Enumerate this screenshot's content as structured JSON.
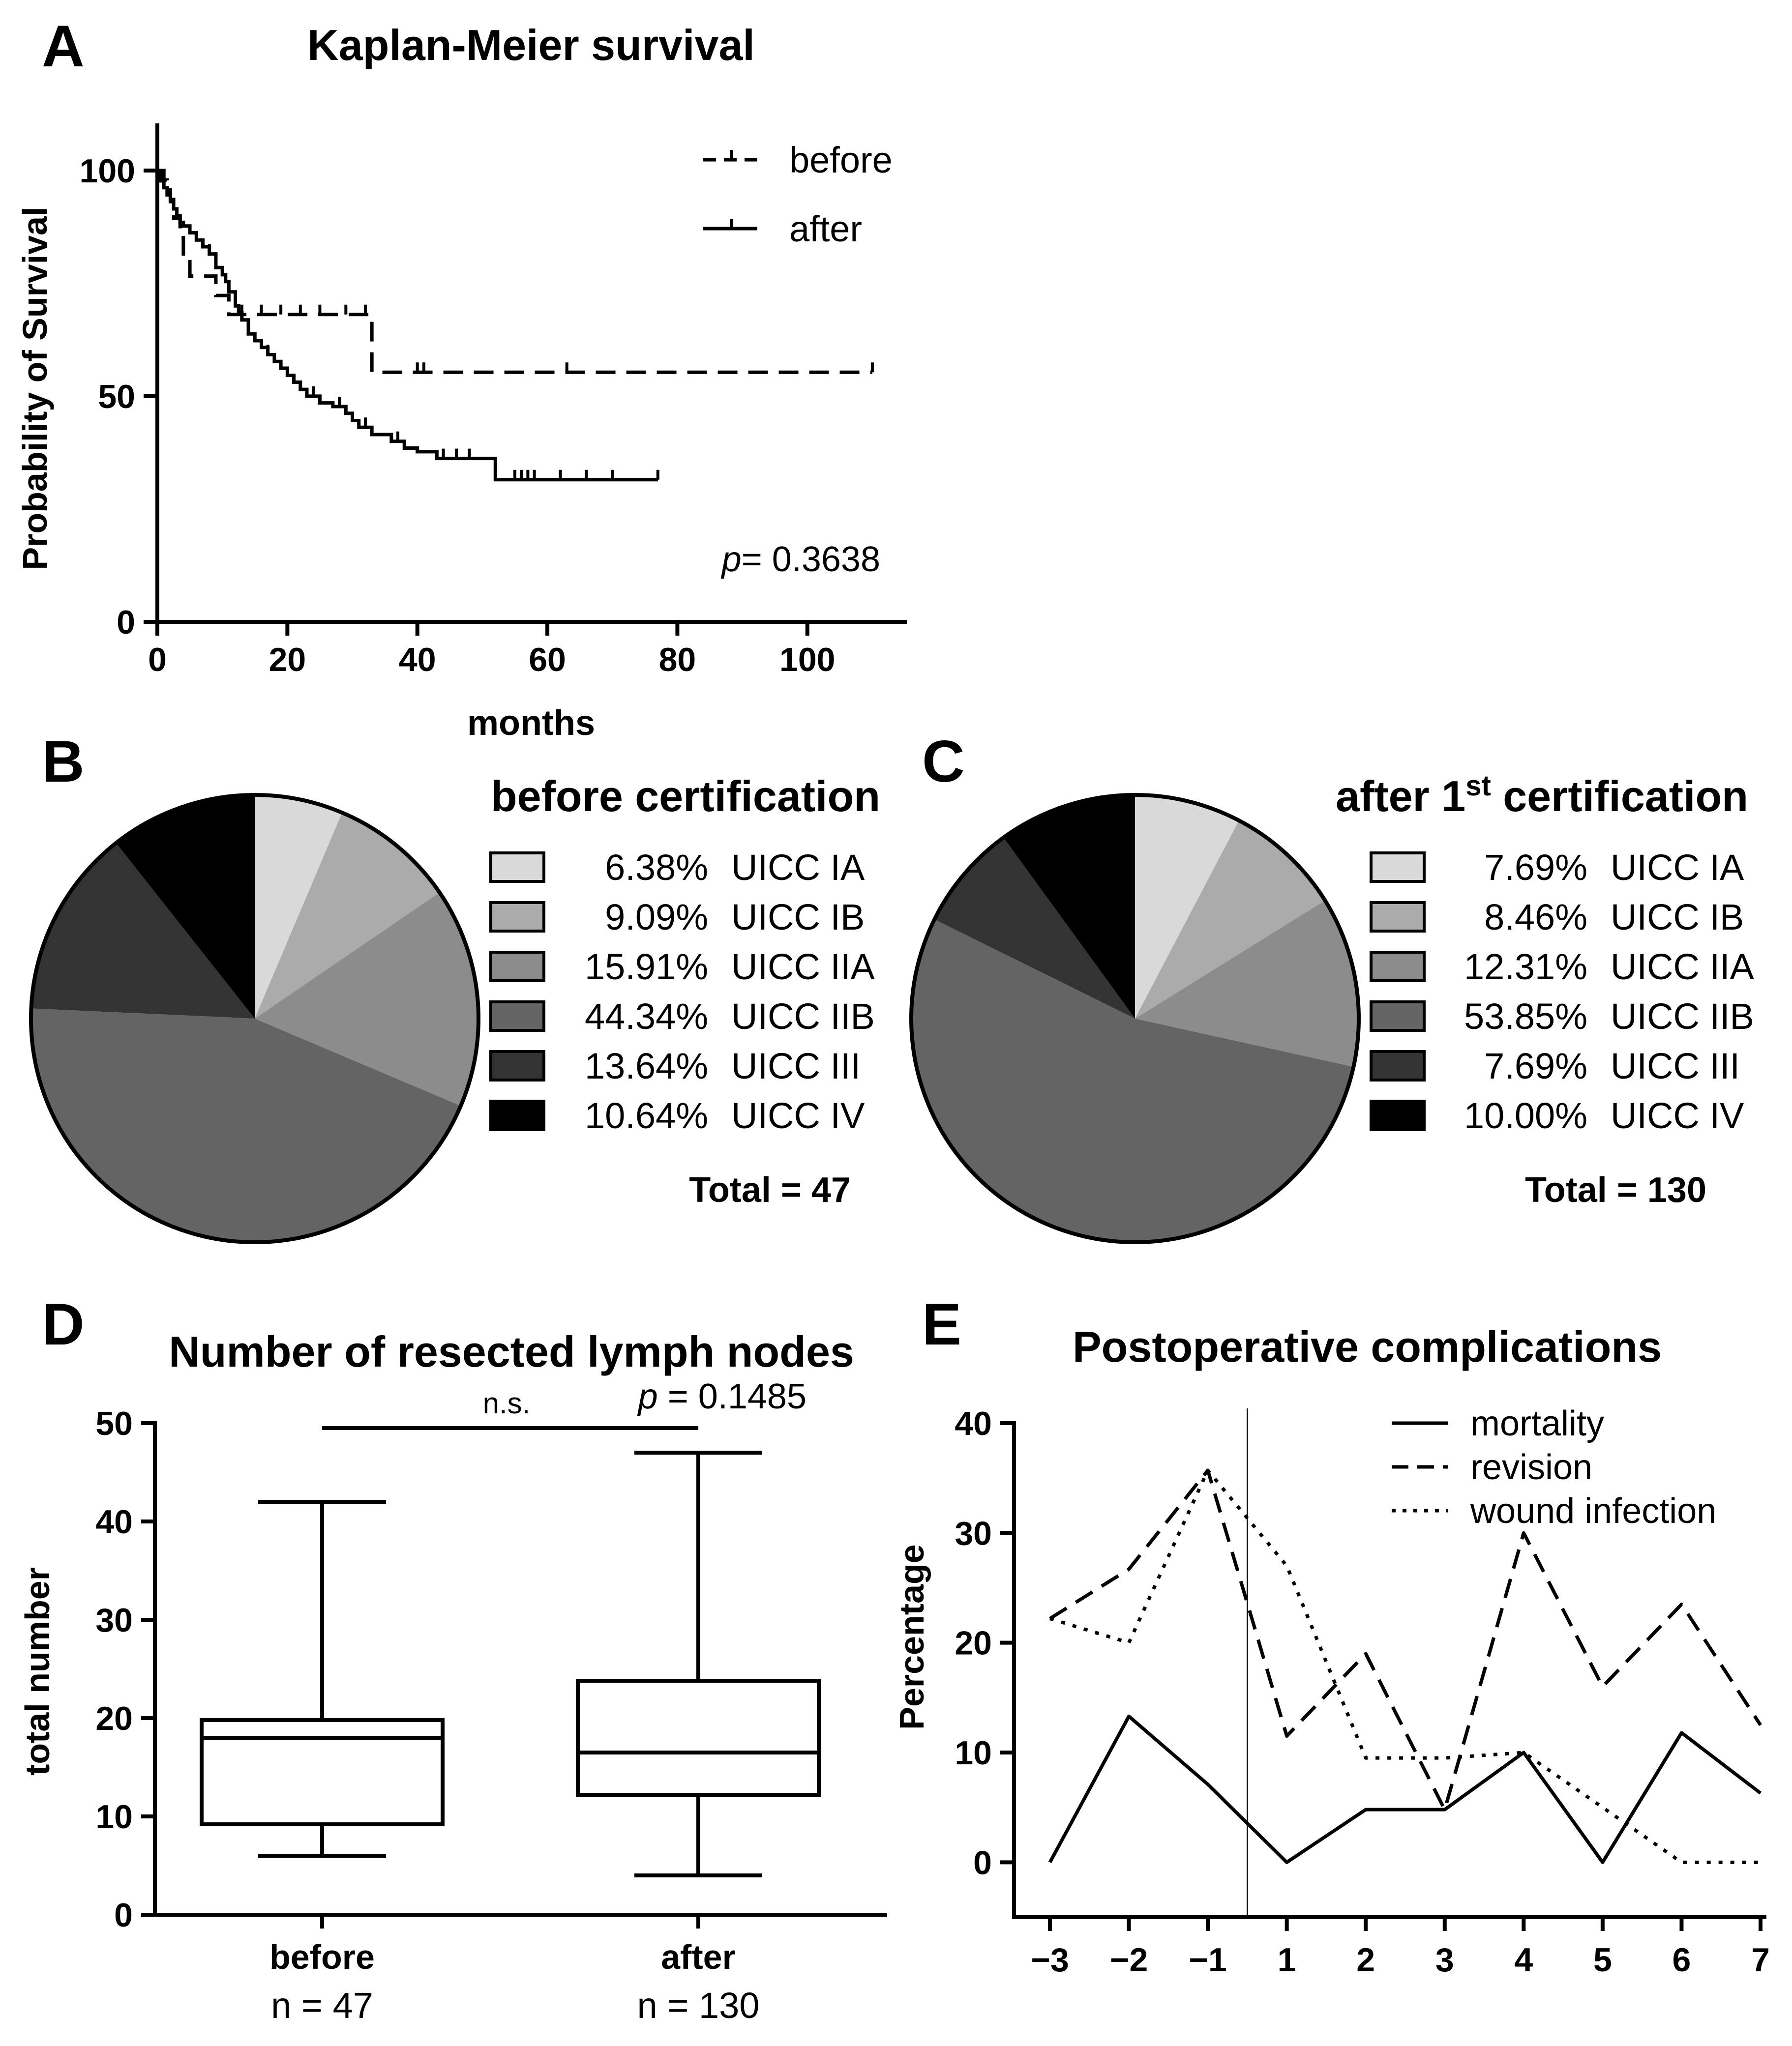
{
  "panel_letters": [
    "A",
    "B",
    "C",
    "D",
    "E"
  ],
  "chart_data": [
    {
      "type": "line",
      "id": "A",
      "title": "Kaplan-Meier survival",
      "xlabel": "months",
      "ylabel": "Probability of Survival",
      "xlim": [
        0,
        115
      ],
      "ylim": [
        0,
        110
      ],
      "xticks": [
        0,
        20,
        40,
        60,
        80,
        100
      ],
      "yticks": [
        0,
        50,
        100
      ],
      "legend_position": "top-right",
      "annotation": {
        "p_label": "p",
        "text": "=  0.3638"
      },
      "series": [
        {
          "name": "before",
          "style": "dashed",
          "steps": [
            [
              0,
              100
            ],
            [
              1,
              97.9
            ],
            [
              1.5,
              95.7
            ],
            [
              2,
              93.6
            ],
            [
              2.5,
              89.4
            ],
            [
              3.5,
              85.1
            ],
            [
              4,
              80.9
            ],
            [
              5,
              76.6
            ],
            [
              9,
              72.3
            ],
            [
              11,
              68.1
            ],
            [
              33,
              55.3
            ],
            [
              110,
              55.3
            ]
          ],
          "censored": [
            13,
            16,
            19,
            22,
            25,
            29,
            32,
            40,
            41,
            63,
            110
          ]
        },
        {
          "name": "after",
          "style": "solid",
          "steps": [
            [
              0,
              100
            ],
            [
              0.5,
              97.7
            ],
            [
              1,
              96.2
            ],
            [
              1.5,
              94.6
            ],
            [
              2,
              93.1
            ],
            [
              2.5,
              91.5
            ],
            [
              3,
              90
            ],
            [
              3.5,
              88.5
            ],
            [
              4,
              87.7
            ],
            [
              5,
              86.2
            ],
            [
              6,
              84.6
            ],
            [
              7,
              83.1
            ],
            [
              8,
              81.5
            ],
            [
              9,
              78.5
            ],
            [
              10,
              76.9
            ],
            [
              10.5,
              75.4
            ],
            [
              11,
              73.1
            ],
            [
              12,
              70
            ],
            [
              12.5,
              68.5
            ],
            [
              13,
              66.9
            ],
            [
              14,
              63.8
            ],
            [
              15,
              62.3
            ],
            [
              16,
              60.8
            ],
            [
              17,
              59.2
            ],
            [
              18,
              57.7
            ],
            [
              19,
              56.2
            ],
            [
              20,
              54.6
            ],
            [
              21,
              53.1
            ],
            [
              22,
              51.5
            ],
            [
              23,
              50
            ],
            [
              25,
              48.5
            ],
            [
              27,
              47.7
            ],
            [
              29,
              46.2
            ],
            [
              30,
              44.6
            ],
            [
              31,
              43.1
            ],
            [
              33,
              41.5
            ],
            [
              36,
              40
            ],
            [
              38,
              38.5
            ],
            [
              40,
              37.7
            ],
            [
              43,
              36.2
            ],
            [
              52,
              31.5
            ],
            [
              77,
              31.5
            ]
          ],
          "censored": [
            8,
            11,
            14,
            17,
            24,
            28,
            32,
            37,
            44,
            46,
            48,
            55,
            56,
            57,
            58,
            62,
            66,
            70,
            77
          ]
        }
      ]
    },
    {
      "type": "pie",
      "id": "B",
      "title": "before certification",
      "total_label": "Total = 47",
      "slices": [
        {
          "label": "UICC IA",
          "value": 6.38,
          "value_text": "6.38%",
          "color": "#d9d9d9"
        },
        {
          "label": "UICC IB",
          "value": 9.09,
          "value_text": "9.09%",
          "color": "#ababab"
        },
        {
          "label": "UICC IIA",
          "value": 15.91,
          "value_text": "15.91%",
          "color": "#8c8c8c"
        },
        {
          "label": "UICC IIB",
          "value": 44.34,
          "value_text": "44.34%",
          "color": "#646464"
        },
        {
          "label": "UICC III",
          "value": 13.64,
          "value_text": "13.64%",
          "color": "#333333"
        },
        {
          "label": "UICC IV",
          "value": 10.64,
          "value_text": "10.64%",
          "color": "#000000"
        }
      ]
    },
    {
      "type": "pie",
      "id": "C",
      "title_parts": [
        "after 1",
        "st",
        " certification"
      ],
      "total_label": "Total = 130",
      "slices": [
        {
          "label": "UICC IA",
          "value": 7.69,
          "value_text": "7.69%",
          "color": "#d9d9d9"
        },
        {
          "label": "UICC IB",
          "value": 8.46,
          "value_text": "8.46%",
          "color": "#ababab"
        },
        {
          "label": "UICC IIA",
          "value": 12.31,
          "value_text": "12.31%",
          "color": "#8c8c8c"
        },
        {
          "label": "UICC IIB",
          "value": 53.85,
          "value_text": "53.85%",
          "color": "#646464"
        },
        {
          "label": "UICC III",
          "value": 7.69,
          "value_text": "7.69%",
          "color": "#333333"
        },
        {
          "label": "UICC IV",
          "value": 10.0,
          "value_text": "10.00%",
          "color": "#000000"
        }
      ]
    },
    {
      "type": "box",
      "id": "D",
      "title": "Number of resected lymph nodes",
      "ylabel": "total number",
      "ylim": [
        0,
        50
      ],
      "yticks": [
        0,
        10,
        20,
        30,
        40,
        50
      ],
      "groups": [
        {
          "label": "before",
          "n_label": "n = 47",
          "min": 6,
          "q1": 9.2,
          "median": 18,
          "q3": 19.8,
          "max": 42
        },
        {
          "label": "after",
          "n_label": "n = 130",
          "min": 4,
          "q1": 12.2,
          "median": 16.5,
          "q3": 23.8,
          "max": 47
        }
      ],
      "significance": {
        "label": "n.s.",
        "p_label": "p",
        "p_text": " = 0.1485",
        "y": 49.5
      }
    },
    {
      "type": "line",
      "id": "E",
      "title": "Postoperative complications",
      "ylabel": "Percentage",
      "categories": [
        "−3",
        "−2",
        "−1",
        "1",
        "2",
        "3",
        "4",
        "5",
        "6",
        "7"
      ],
      "ylim": [
        -5,
        40
      ],
      "yticks": [
        0,
        10,
        20,
        30,
        40
      ],
      "divider_between": [
        2,
        3
      ],
      "legend_position": "top-right",
      "series": [
        {
          "name": "mortality",
          "style": "solid",
          "values": [
            0,
            13.3,
            7.1,
            0,
            4.8,
            4.8,
            10,
            0,
            11.8,
            6.3
          ]
        },
        {
          "name": "revision",
          "style": "dashed",
          "values": [
            22.2,
            26.7,
            35.7,
            11.5,
            19,
            4.8,
            30,
            16,
            23.5,
            12.5
          ]
        },
        {
          "name": "wound infection",
          "style": "dotted",
          "values": [
            22.2,
            20,
            35.7,
            27,
            9.5,
            9.5,
            10,
            5,
            0,
            0
          ]
        }
      ]
    }
  ]
}
